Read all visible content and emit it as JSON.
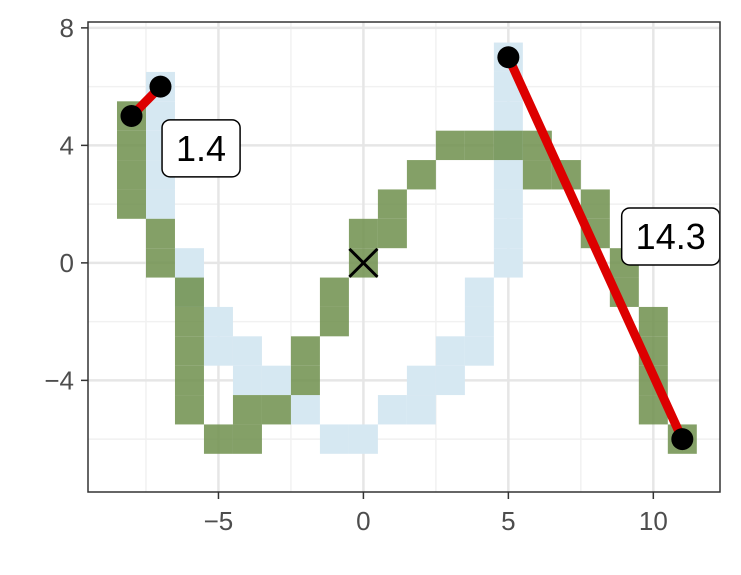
{
  "chart_data": {
    "type": "heatmap",
    "title": "",
    "xlabel": "",
    "ylabel": "",
    "xlim": [
      -9.5,
      12.3
    ],
    "ylim": [
      -7.8,
      8.2
    ],
    "grid": true,
    "x_ticks": [
      -5,
      0,
      5,
      10
    ],
    "y_ticks": [
      -4,
      0,
      4,
      8
    ],
    "x_tick_labels": [
      "−5",
      "0",
      "5",
      "10"
    ],
    "y_tick_labels": [
      "−4",
      "0",
      "4",
      "8"
    ],
    "cell_size": 1,
    "layers": [
      {
        "color": "#d6e8f2",
        "cells": [
          [
            -7,
            6
          ],
          [
            -7,
            5
          ],
          [
            -7,
            4
          ],
          [
            -7,
            3
          ],
          [
            -7,
            2
          ],
          [
            -6,
            0
          ],
          [
            -6,
            -1
          ],
          [
            -5,
            -2
          ],
          [
            -5,
            -3
          ],
          [
            -4,
            -3
          ],
          [
            -4,
            -4
          ],
          [
            -3,
            -4
          ],
          [
            -2,
            -5
          ],
          [
            -1,
            -6
          ],
          [
            0,
            -6
          ],
          [
            1,
            -5
          ],
          [
            2,
            -5
          ],
          [
            2,
            -4
          ],
          [
            3,
            -4
          ],
          [
            3,
            -3
          ],
          [
            4,
            -3
          ],
          [
            4,
            -2
          ],
          [
            4,
            -1
          ],
          [
            5,
            0
          ],
          [
            5,
            1
          ],
          [
            5,
            2
          ],
          [
            5,
            3
          ],
          [
            5,
            4
          ],
          [
            5,
            5
          ],
          [
            5,
            6
          ],
          [
            5,
            7
          ]
        ]
      },
      {
        "color": "#6f8f4c",
        "cells": [
          [
            -8,
            5
          ],
          [
            -8,
            4
          ],
          [
            -8,
            3
          ],
          [
            -8,
            2
          ],
          [
            -7,
            1
          ],
          [
            -7,
            0
          ],
          [
            -6,
            -1
          ],
          [
            -6,
            -2
          ],
          [
            -6,
            -3
          ],
          [
            -6,
            -4
          ],
          [
            -6,
            -5
          ],
          [
            -5,
            -6
          ],
          [
            -4,
            -6
          ],
          [
            -4,
            -5
          ],
          [
            -3,
            -5
          ],
          [
            -2,
            -4
          ],
          [
            -2,
            -3
          ],
          [
            -1,
            -2
          ],
          [
            -1,
            -1
          ],
          [
            0,
            0
          ],
          [
            0,
            1
          ],
          [
            1,
            1
          ],
          [
            1,
            2
          ],
          [
            2,
            3
          ],
          [
            3,
            4
          ],
          [
            4,
            4
          ],
          [
            5,
            4
          ],
          [
            6,
            4
          ],
          [
            6,
            3
          ],
          [
            7,
            3
          ],
          [
            8,
            2
          ],
          [
            8,
            1
          ],
          [
            9,
            0
          ],
          [
            9,
            -1
          ],
          [
            10,
            -2
          ],
          [
            10,
            -3
          ],
          [
            10,
            -4
          ],
          [
            10,
            -5
          ],
          [
            11,
            -6
          ]
        ]
      }
    ],
    "segments": [
      {
        "x": [
          -8,
          -7
        ],
        "y": [
          5,
          6
        ],
        "color": "#dd0000",
        "label": "1.4",
        "label_pos": [
          -5.6,
          3.9
        ]
      },
      {
        "x": [
          5,
          11
        ],
        "y": [
          7,
          -6
        ],
        "color": "#dd0000",
        "label": "14.3",
        "label_pos": [
          10.6,
          0.9
        ]
      }
    ],
    "points": [
      [
        -8,
        5
      ],
      [
        -7,
        6
      ],
      [
        5,
        7
      ],
      [
        11,
        -6
      ]
    ],
    "marker_x": [
      0,
      0
    ]
  }
}
